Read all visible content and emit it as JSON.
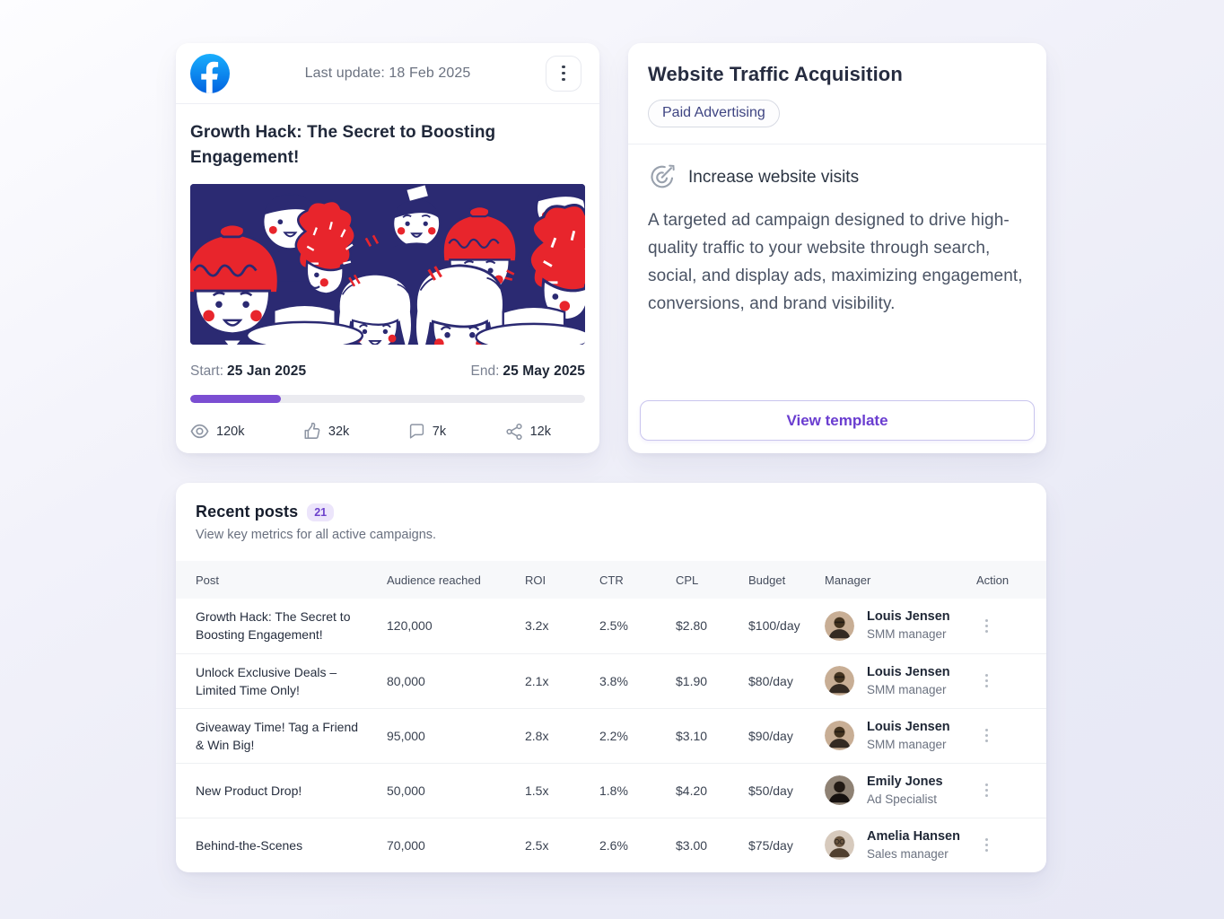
{
  "theme": {
    "accent_purple": "#7b4ed2",
    "facebook_blue": "#1877F2",
    "illustration_navy": "#2b2a72",
    "illustration_red": "#e8252c"
  },
  "campaign_card": {
    "platform_icon": "facebook-icon",
    "last_update": "Last update: 18 Feb 2025",
    "title": "Growth Hack: The Secret to Boosting Engagement!",
    "illustration": "crowd-of-people-illustration",
    "start_label": "Start:",
    "start_date": "25 Jan 2025",
    "end_label": "End:",
    "end_date": "25 May 2025",
    "progress_percent": 23,
    "stats": [
      {
        "icon": "eye-icon",
        "value": "120k"
      },
      {
        "icon": "thumbs-up-icon",
        "value": "32k"
      },
      {
        "icon": "comment-icon",
        "value": "7k"
      },
      {
        "icon": "share-icon",
        "value": "12k"
      }
    ]
  },
  "template_card": {
    "title": "Website Traffic Acquisition",
    "badge": "Paid Advertising",
    "goal_icon": "goal-target-icon",
    "goal": "Increase website visits",
    "description": "A targeted ad campaign designed to drive high-quality traffic to your website through search, social, and display ads, maximizing engagement, conversions, and brand visibility.",
    "button": "View template"
  },
  "recent_posts": {
    "title": "Recent posts",
    "count": "21",
    "subtitle": "View key metrics for all active campaigns.",
    "columns": [
      "Post",
      "Audience reached",
      "ROI",
      "CTR",
      "CPL",
      "Budget",
      "Manager",
      "Action"
    ],
    "rows": [
      {
        "post": "Growth Hack: The Secret to Boosting Engagement!",
        "audience": "120,000",
        "roi": "3.2x",
        "ctr": "2.5%",
        "cpl": "$2.80",
        "budget": "$100/day",
        "manager": "Louis Jensen",
        "role": "SMM manager"
      },
      {
        "post": "Unlock Exclusive Deals – Limited Time Only!",
        "audience": "80,000",
        "roi": "2.1x",
        "ctr": "3.8%",
        "cpl": "$1.90",
        "budget": "$80/day",
        "manager": "Louis Jensen",
        "role": "SMM manager"
      },
      {
        "post": "Giveaway Time! Tag a Friend & Win Big!",
        "audience": "95,000",
        "roi": "2.8x",
        "ctr": "2.2%",
        "cpl": "$3.10",
        "budget": "$90/day",
        "manager": "Louis Jensen",
        "role": "SMM manager"
      },
      {
        "post": "New Product Drop!",
        "audience": "50,000",
        "roi": "1.5x",
        "ctr": "1.8%",
        "cpl": "$4.20",
        "budget": "$50/day",
        "manager": "Emily Jones",
        "role": "Ad Specialist"
      },
      {
        "post": "Behind-the-Scenes",
        "audience": "70,000",
        "roi": "2.5x",
        "ctr": "2.6%",
        "cpl": "$3.00",
        "budget": "$75/day",
        "manager": "Amelia Hansen",
        "role": "Sales manager"
      }
    ]
  }
}
